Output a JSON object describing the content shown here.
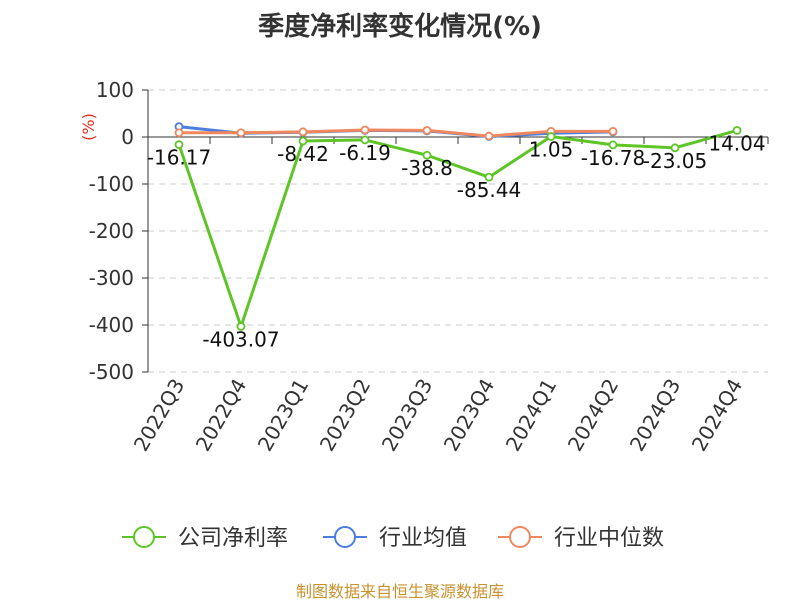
{
  "title": "季度净利率变化情况(%)",
  "source": "制图数据来自恒生聚源数据库",
  "chart_data": {
    "type": "line",
    "title": "季度净利率变化情况(%)",
    "ylabel": "(%)",
    "ylim": [
      -500,
      100
    ],
    "yticks": [
      100,
      0,
      -100,
      -200,
      -300,
      -400,
      -500
    ],
    "grid": true,
    "legend_position": "bottom",
    "categories": [
      "2022Q3",
      "2022Q4",
      "2023Q1",
      "2023Q2",
      "2023Q3",
      "2023Q4",
      "2024Q1",
      "2024Q2",
      "2024Q3",
      "2024Q4"
    ],
    "series": [
      {
        "name": "公司净利率",
        "color": "#5ec527",
        "values": [
          -16.17,
          -403.07,
          -8.42,
          -6.19,
          -38.8,
          -85.44,
          1.05,
          -16.78,
          -23.05,
          14.04
        ],
        "labels": [
          "-16.17",
          "-403.07",
          "-8.42",
          "-6.19",
          "-38.8",
          "-85.44",
          "1.05",
          "-16.78",
          "-23.05",
          "14.04"
        ]
      },
      {
        "name": "行业均值",
        "color": "#4c7ee0",
        "values": [
          22,
          8,
          10,
          14,
          13,
          1,
          8,
          11,
          null,
          null
        ]
      },
      {
        "name": "行业中位数",
        "color": "#f0885f",
        "values": [
          9,
          9,
          11,
          15,
          14,
          2,
          12,
          12,
          null,
          null
        ]
      }
    ]
  }
}
